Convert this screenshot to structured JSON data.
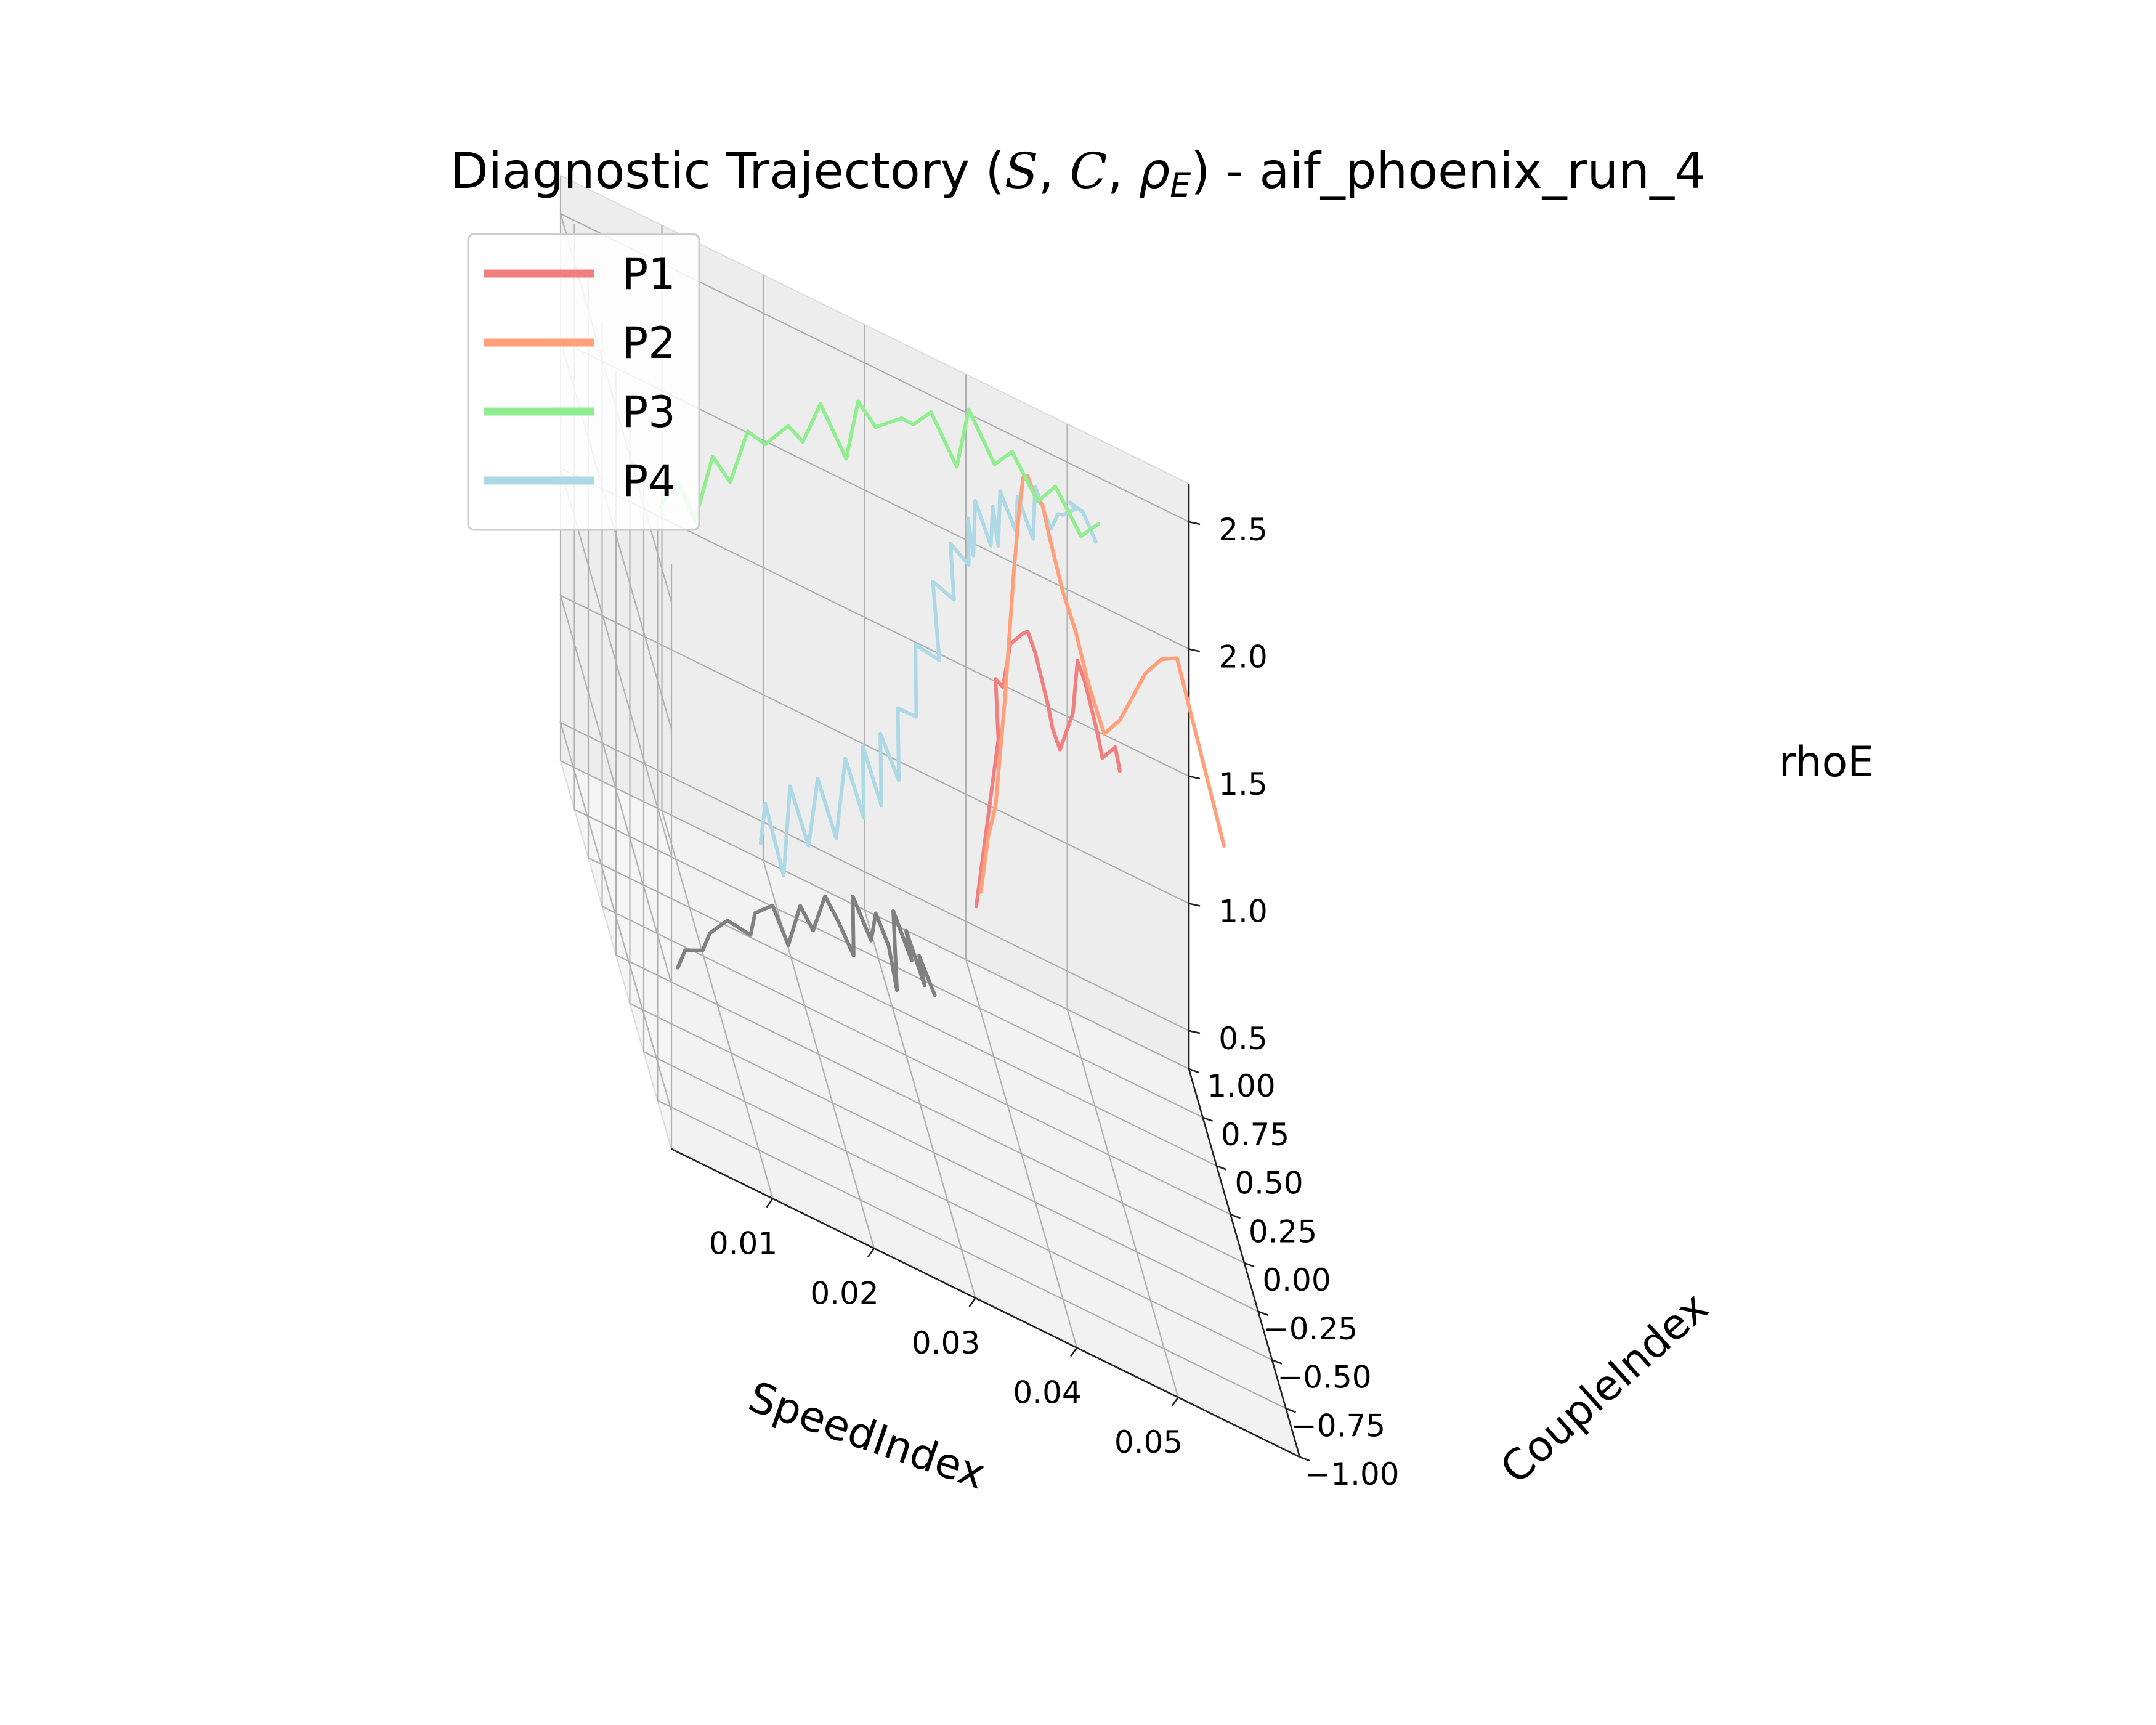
{
  "chart_data": {
    "type": "line",
    "projection": "3d",
    "title": {
      "pre": "Diagnostic Trajectory (",
      "s": "S",
      "c": "C",
      "rho": "ρ",
      "rho_sub": "E",
      "post": ") - aif_phoenix_run_4"
    },
    "xlabel": "SpeedIndex",
    "ylabel": "CoupleIndex",
    "zlabel": "rhoE",
    "x_ticks": [
      "0.01",
      "0.02",
      "0.03",
      "0.04",
      "0.05"
    ],
    "y_ticks": [
      "−1.00",
      "−0.75",
      "−0.50",
      "−0.25",
      "0.00",
      "0.25",
      "0.50",
      "0.75",
      "1.00"
    ],
    "z_ticks": [
      "0.5",
      "1.0",
      "1.5",
      "2.0",
      "2.5"
    ],
    "xlim": [
      0.0,
      0.062
    ],
    "ylim": [
      -1.0,
      1.0
    ],
    "zlim": [
      0.35,
      2.65
    ],
    "grid": true,
    "legend_position": "top-left",
    "colors": {
      "P1": "#f08080",
      "P2": "#ffa07a",
      "P3": "#90ee90",
      "P4": "#add8e6",
      "pre": "#808080"
    },
    "series": [
      {
        "id": "pre",
        "color": "#808080",
        "x": [
          0.005,
          0.006,
          0.008,
          0.009,
          0.011,
          0.013,
          0.014,
          0.016,
          0.017,
          0.019,
          0.02,
          0.022,
          0.023,
          0.024,
          0.025,
          0.026,
          0.027,
          0.028,
          0.028,
          0.029,
          0.03,
          0.03,
          0.031,
          0.031,
          0.032
        ],
        "y": [
          -0.2,
          -0.15,
          -0.1,
          -0.05,
          0.0,
          -0.05,
          0.05,
          0.1,
          0.0,
          0.15,
          0.1,
          0.25,
          0.2,
          0.1,
          0.3,
          0.15,
          0.25,
          0.2,
          0.05,
          0.3,
          0.15,
          0.25,
          0.1,
          0.2,
          0.1
        ],
        "z": [
          0.55,
          0.6,
          0.6,
          0.65,
          0.7,
          0.72,
          0.75,
          0.78,
          0.72,
          0.8,
          0.76,
          0.82,
          0.78,
          0.74,
          0.84,
          0.8,
          0.85,
          0.78,
          0.72,
          0.86,
          0.8,
          0.84,
          0.76,
          0.8,
          0.74
        ]
      },
      {
        "id": "P4",
        "color": "#add8e6",
        "x": [
          0.014,
          0.015,
          0.016,
          0.018,
          0.019,
          0.021,
          0.022,
          0.024,
          0.025,
          0.026,
          0.027,
          0.028,
          0.029,
          0.03,
          0.031,
          0.032,
          0.033,
          0.034,
          0.035,
          0.036,
          0.037,
          0.038,
          0.038,
          0.039,
          0.04,
          0.041,
          0.041,
          0.042,
          0.043,
          0.044,
          0.045,
          0.046,
          0.047,
          0.048,
          0.049,
          0.05,
          0.05,
          0.051,
          0.052
        ],
        "y": [
          -0.05,
          0.05,
          -0.1,
          0.15,
          0.0,
          0.2,
          0.05,
          0.25,
          0.1,
          0.3,
          0.15,
          0.35,
          0.2,
          0.4,
          0.25,
          0.45,
          0.2,
          0.5,
          0.3,
          0.55,
          0.4,
          0.6,
          0.5,
          0.65,
          0.55,
          0.7,
          0.6,
          0.75,
          0.65,
          0.8,
          0.7,
          0.85,
          0.75,
          0.8,
          0.9,
          0.85,
          0.95,
          0.9,
          0.85
        ],
        "z": [
          1.1,
          1.2,
          1.05,
          1.25,
          1.15,
          1.3,
          1.2,
          1.4,
          1.3,
          1.45,
          1.35,
          1.5,
          1.45,
          1.6,
          1.7,
          1.85,
          2.0,
          2.1,
          2.2,
          2.25,
          2.3,
          2.35,
          2.28,
          2.4,
          2.32,
          2.38,
          2.3,
          2.42,
          2.36,
          2.4,
          2.33,
          2.44,
          2.37,
          2.41,
          2.35,
          2.43,
          2.38,
          2.4,
          2.34
        ]
      },
      {
        "id": "P1",
        "color": "#f08080",
        "x": [
          0.035,
          0.036,
          0.037,
          0.038,
          0.038,
          0.039,
          0.04,
          0.041,
          0.042,
          0.043,
          0.044,
          0.045,
          0.046,
          0.047,
          0.048,
          0.049,
          0.05,
          0.051,
          0.052,
          0.053
        ],
        "y": [
          -0.1,
          -0.05,
          0.0,
          0.05,
          0.1,
          0.15,
          0.2,
          0.15,
          0.25,
          0.3,
          0.25,
          0.35,
          0.4,
          0.35,
          0.45,
          0.5,
          0.45,
          0.55,
          0.5,
          0.6
        ],
        "z": [
          1.3,
          1.5,
          1.7,
          1.9,
          2.1,
          2.05,
          2.2,
          2.3,
          2.25,
          2.15,
          2.0,
          1.85,
          1.75,
          1.95,
          2.1,
          2.0,
          1.85,
          1.7,
          1.8,
          1.65
        ]
      },
      {
        "id": "P2",
        "color": "#ffa07a",
        "x": [
          0.036,
          0.037,
          0.038,
          0.039,
          0.04,
          0.041,
          0.042,
          0.043,
          0.044,
          0.045,
          0.046,
          0.047,
          0.048,
          0.049,
          0.05,
          0.051,
          0.052,
          0.053,
          0.054,
          0.055,
          0.056,
          0.057,
          0.058,
          0.059,
          0.06
        ],
        "y": [
          0.0,
          0.05,
          0.1,
          0.2,
          0.3,
          0.4,
          0.5,
          0.6,
          0.7,
          0.8,
          0.85,
          0.9,
          0.95,
          0.9,
          0.85,
          0.8,
          0.7,
          0.6,
          0.55,
          0.5,
          0.4,
          0.3,
          0.2,
          0.1,
          0.0
        ],
        "z": [
          1.3,
          1.5,
          1.6,
          1.75,
          1.9,
          2.1,
          2.3,
          2.45,
          2.55,
          2.5,
          2.4,
          2.35,
          2.2,
          2.05,
          1.95,
          1.8,
          1.7,
          1.85,
          2.0,
          2.15,
          2.3,
          2.4,
          2.25,
          2.1,
          1.95
        ]
      },
      {
        "id": "P3",
        "color": "#90ee90",
        "x": [
          0.006,
          0.008,
          0.01,
          0.012,
          0.014,
          0.016,
          0.018,
          0.02,
          0.022,
          0.024,
          0.026,
          0.028,
          0.03,
          0.032,
          0.034,
          0.036,
          0.038,
          0.04,
          0.042,
          0.044,
          0.046,
          0.048,
          0.05,
          0.052
        ],
        "y": [
          0.3,
          0.35,
          0.4,
          0.45,
          0.5,
          0.55,
          0.6,
          0.55,
          0.65,
          0.7,
          0.6,
          0.75,
          0.8,
          0.7,
          0.85,
          0.9,
          0.8,
          0.95,
          0.85,
          0.9,
          0.8,
          0.85,
          0.75,
          0.8
        ],
        "z": [
          2.0,
          2.1,
          1.95,
          2.2,
          2.1,
          2.3,
          2.25,
          2.4,
          2.3,
          2.45,
          2.35,
          2.5,
          2.4,
          2.55,
          2.45,
          2.5,
          2.4,
          2.55,
          2.45,
          2.5,
          2.42,
          2.48,
          2.4,
          2.45
        ]
      }
    ],
    "legend": [
      "P1",
      "P2",
      "P3",
      "P4"
    ]
  }
}
